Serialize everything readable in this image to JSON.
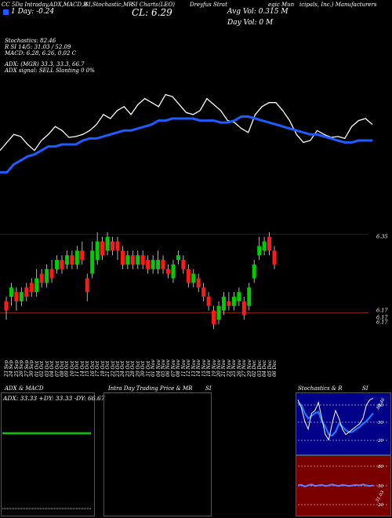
{
  "header": {
    "line1": [
      "CC 5Da Intraday,ADX,MACD,R",
      "SI,Stochastic,MR",
      "SI Charts",
      "Dreyfus Strat",
      "egic Mun",
      "icipals, Inc.) Manufacturers"
    ],
    "symbol_label": "(LEO)",
    "ticker_combo": "CL: 6.29",
    "one_day": "1 Day: -0.24",
    "avg_vol": "Avg Vol: 0.315  M",
    "day_vol": "Day Vol: 0   M",
    "stoch": "Stochastics: 82.46",
    "rsi": "R                   SI 14/5: 31.03 / 52.09",
    "macd": "MACD: 6.28, 6.26, 0.02  C",
    "adx": "ADX:                             (MGR) 33.3, 33.3, 66.7",
    "adx_signal": "ADX  signal: SELL  Slanting 0 0%"
  },
  "colors": {
    "bg": "#000000",
    "up": "#00cc00",
    "down": "#ff1a1a",
    "blue": "#1e5cff",
    "white": "#ffffff",
    "ref_line": "#8b2500"
  },
  "chart_data": [
    {
      "type": "line",
      "name": "overlay",
      "series": [
        {
          "name": "price_line",
          "color": "white",
          "values": [
            0.42,
            0.5,
            0.58,
            0.56,
            0.48,
            0.42,
            0.52,
            0.58,
            0.66,
            0.62,
            0.55,
            0.56,
            0.58,
            0.62,
            0.68,
            0.78,
            0.74,
            0.82,
            0.86,
            0.78,
            0.88,
            0.94,
            0.9,
            0.86,
            0.98,
            0.96,
            0.88,
            0.8,
            0.78,
            0.82,
            0.94,
            0.88,
            0.82,
            0.72,
            0.7,
            0.64,
            0.6,
            0.78,
            0.86,
            0.9,
            0.9,
            0.82,
            0.72,
            0.58,
            0.5,
            0.52,
            0.62,
            0.58,
            0.55,
            0.56,
            0.54,
            0.66,
            0.72,
            0.74,
            0.68
          ]
        },
        {
          "name": "ma_line",
          "color": "blue",
          "values": [
            0.2,
            0.2,
            0.28,
            0.32,
            0.36,
            0.38,
            0.42,
            0.46,
            0.46,
            0.48,
            0.48,
            0.48,
            0.52,
            0.54,
            0.54,
            0.56,
            0.58,
            0.6,
            0.62,
            0.62,
            0.64,
            0.66,
            0.68,
            0.72,
            0.72,
            0.74,
            0.74,
            0.74,
            0.74,
            0.72,
            0.72,
            0.72,
            0.7,
            0.7,
            0.72,
            0.76,
            0.76,
            0.74,
            0.72,
            0.7,
            0.68,
            0.66,
            0.64,
            0.62,
            0.6,
            0.58,
            0.58,
            0.56,
            0.54,
            0.52,
            0.5,
            0.5,
            0.52,
            0.52,
            0.52
          ]
        }
      ]
    },
    {
      "type": "candlestick",
      "name": "price",
      "price_labels": [
        "6.35",
        "6.17",
        "6.17",
        "6.17"
      ],
      "dates": [
        "23 Sep",
        "24 Sep",
        "25 Sep",
        "26 Sep",
        "27 Sep",
        "30 Sep",
        "01 Oct",
        "02 Oct",
        "03 Oct",
        "04 Oct",
        "07 Oct",
        "08 Oct",
        "09 Oct",
        "10 Oct",
        "11 Oct",
        "14 Oct",
        "15 Oct",
        "16 Oct",
        "17 Oct",
        "18 Oct",
        "21 Oct",
        "22 Oct",
        "23 Oct",
        "24 Oct",
        "25 Oct",
        "28 Oct",
        "29 Oct",
        "30 Oct",
        "31 Oct",
        "01 Nov",
        "04 Nov",
        "05 Nov",
        "06 Nov",
        "07 Nov",
        "08 Nov",
        "11 Nov",
        "12 Nov",
        "13 Nov",
        "14 Nov",
        "15 Nov",
        "18 Nov",
        "19 Nov",
        "20 Nov",
        "21 Nov",
        "22 Nov",
        "25 Nov",
        "26 Nov",
        "27 Nov",
        "29 Nov",
        "02 Dec",
        "03 Dec",
        "04 Dec",
        "05 Dec",
        "06 Dec"
      ],
      "candles": [
        {
          "o": 6.2,
          "c": 6.18,
          "h": 6.21,
          "l": 6.16
        },
        {
          "o": 6.21,
          "c": 6.23,
          "h": 6.24,
          "l": 6.19
        },
        {
          "o": 6.22,
          "c": 6.2,
          "h": 6.23,
          "l": 6.18
        },
        {
          "o": 6.2,
          "c": 6.22,
          "h": 6.23,
          "l": 6.19
        },
        {
          "o": 6.23,
          "c": 6.21,
          "h": 6.24,
          "l": 6.2
        },
        {
          "o": 6.24,
          "c": 6.22,
          "h": 6.25,
          "l": 6.21
        },
        {
          "o": 6.22,
          "c": 6.25,
          "h": 6.27,
          "l": 6.21
        },
        {
          "o": 6.26,
          "c": 6.24,
          "h": 6.27,
          "l": 6.23
        },
        {
          "o": 6.24,
          "c": 6.27,
          "h": 6.28,
          "l": 6.23
        },
        {
          "o": 6.27,
          "c": 6.25,
          "h": 6.29,
          "l": 6.24
        },
        {
          "o": 6.27,
          "c": 6.29,
          "h": 6.3,
          "l": 6.26
        },
        {
          "o": 6.29,
          "c": 6.27,
          "h": 6.3,
          "l": 6.26
        },
        {
          "o": 6.28,
          "c": 6.3,
          "h": 6.31,
          "l": 6.27
        },
        {
          "o": 6.3,
          "c": 6.28,
          "h": 6.31,
          "l": 6.27
        },
        {
          "o": 6.28,
          "c": 6.31,
          "h": 6.32,
          "l": 6.27
        },
        {
          "o": 6.31,
          "c": 6.29,
          "h": 6.33,
          "l": 6.28
        },
        {
          "o": 6.25,
          "c": 6.22,
          "h": 6.26,
          "l": 6.2
        },
        {
          "o": 6.26,
          "c": 6.31,
          "h": 6.33,
          "l": 6.25
        },
        {
          "o": 6.29,
          "c": 6.33,
          "h": 6.35,
          "l": 6.28
        },
        {
          "o": 6.33,
          "c": 6.3,
          "h": 6.34,
          "l": 6.29
        },
        {
          "o": 6.31,
          "c": 6.34,
          "h": 6.35,
          "l": 6.3
        },
        {
          "o": 6.33,
          "c": 6.31,
          "h": 6.34,
          "l": 6.3
        },
        {
          "o": 6.33,
          "c": 6.31,
          "h": 6.34,
          "l": 6.29
        },
        {
          "o": 6.31,
          "c": 6.28,
          "h": 6.32,
          "l": 6.27
        },
        {
          "o": 6.28,
          "c": 6.3,
          "h": 6.31,
          "l": 6.27
        },
        {
          "o": 6.3,
          "c": 6.28,
          "h": 6.31,
          "l": 6.27
        },
        {
          "o": 6.28,
          "c": 6.3,
          "h": 6.31,
          "l": 6.27
        },
        {
          "o": 6.3,
          "c": 6.28,
          "h": 6.31,
          "l": 6.27
        },
        {
          "o": 6.29,
          "c": 6.27,
          "h": 6.3,
          "l": 6.26
        },
        {
          "o": 6.27,
          "c": 6.29,
          "h": 6.3,
          "l": 6.26
        },
        {
          "o": 6.27,
          "c": 6.29,
          "h": 6.31,
          "l": 6.26
        },
        {
          "o": 6.29,
          "c": 6.27,
          "h": 6.3,
          "l": 6.26
        },
        {
          "o": 6.27,
          "c": 6.26,
          "h": 6.28,
          "l": 6.25
        },
        {
          "o": 6.25,
          "c": 6.28,
          "h": 6.29,
          "l": 6.24
        },
        {
          "o": 6.29,
          "c": 6.3,
          "h": 6.31,
          "l": 6.28
        },
        {
          "o": 6.29,
          "c": 6.27,
          "h": 6.3,
          "l": 6.26
        },
        {
          "o": 6.27,
          "c": 6.24,
          "h": 6.28,
          "l": 6.23
        },
        {
          "o": 6.24,
          "c": 6.26,
          "h": 6.27,
          "l": 6.23
        },
        {
          "o": 6.25,
          "c": 6.23,
          "h": 6.26,
          "l": 6.22
        },
        {
          "o": 6.23,
          "c": 6.21,
          "h": 6.24,
          "l": 6.2
        },
        {
          "o": 6.21,
          "c": 6.19,
          "h": 6.22,
          "l": 6.18
        },
        {
          "o": 6.18,
          "c": 6.15,
          "h": 6.19,
          "l": 6.14
        },
        {
          "o": 6.16,
          "c": 6.19,
          "h": 6.2,
          "l": 6.15
        },
        {
          "o": 6.18,
          "c": 6.21,
          "h": 6.22,
          "l": 6.17
        },
        {
          "o": 6.2,
          "c": 6.19,
          "h": 6.22,
          "l": 6.18
        },
        {
          "o": 6.19,
          "c": 6.21,
          "h": 6.22,
          "l": 6.18
        },
        {
          "o": 6.2,
          "c": 6.22,
          "h": 6.23,
          "l": 6.19
        },
        {
          "o": 6.2,
          "c": 6.17,
          "h": 6.21,
          "l": 6.16
        },
        {
          "o": 6.19,
          "c": 6.23,
          "h": 6.24,
          "l": 6.18
        },
        {
          "o": 6.25,
          "c": 6.28,
          "h": 6.29,
          "l": 6.24
        },
        {
          "o": 6.3,
          "c": 6.32,
          "h": 6.34,
          "l": 6.29
        },
        {
          "o": 6.31,
          "c": 6.33,
          "h": 6.34,
          "l": 6.3
        },
        {
          "o": 6.34,
          "c": 6.31,
          "h": 6.35,
          "l": 6.3
        },
        {
          "o": 6.31,
          "c": 6.28,
          "h": 6.32,
          "l": 6.27
        }
      ]
    }
  ],
  "panels": {
    "adx": {
      "title": "ADX  & MACD",
      "readout": "ADX: 33.33  +DY: 33.33  -DY: 66.67"
    },
    "intraday": {
      "title": "Intra  Day Trading Price  & MR",
      "title2": "SI"
    },
    "stoch": {
      "title": "Stochastics & R",
      "title2": "SI",
      "levels": [
        "80",
        "50",
        "20"
      ],
      "rsi_levels": [
        "80",
        "50",
        "20"
      ],
      "stoch_series": [
        0.95,
        0.8,
        0.55,
        0.4,
        0.7,
        0.75,
        0.9,
        0.6,
        0.3,
        0.2,
        0.5,
        0.75,
        0.6,
        0.4,
        0.3,
        0.35,
        0.4,
        0.45,
        0.5,
        0.6,
        0.85,
        0.95,
        0.98
      ],
      "k_series": [
        0.9,
        0.85,
        0.7,
        0.6,
        0.65,
        0.7,
        0.72,
        0.55,
        0.45,
        0.3,
        0.28,
        0.35,
        0.5,
        0.45,
        0.38,
        0.34,
        0.35,
        0.4,
        0.44,
        0.5,
        0.55,
        0.62,
        0.7
      ],
      "rsi_series": [
        0.5,
        0.51,
        0.48,
        0.5,
        0.52,
        0.49,
        0.5,
        0.51,
        0.49,
        0.5,
        0.52,
        0.5,
        0.49,
        0.51,
        0.5,
        0.49,
        0.5,
        0.51,
        0.5,
        0.52,
        0.5,
        0.49,
        0.5
      ],
      "annot_stoch": "82.46",
      "annot_rsi": "31.03"
    }
  }
}
